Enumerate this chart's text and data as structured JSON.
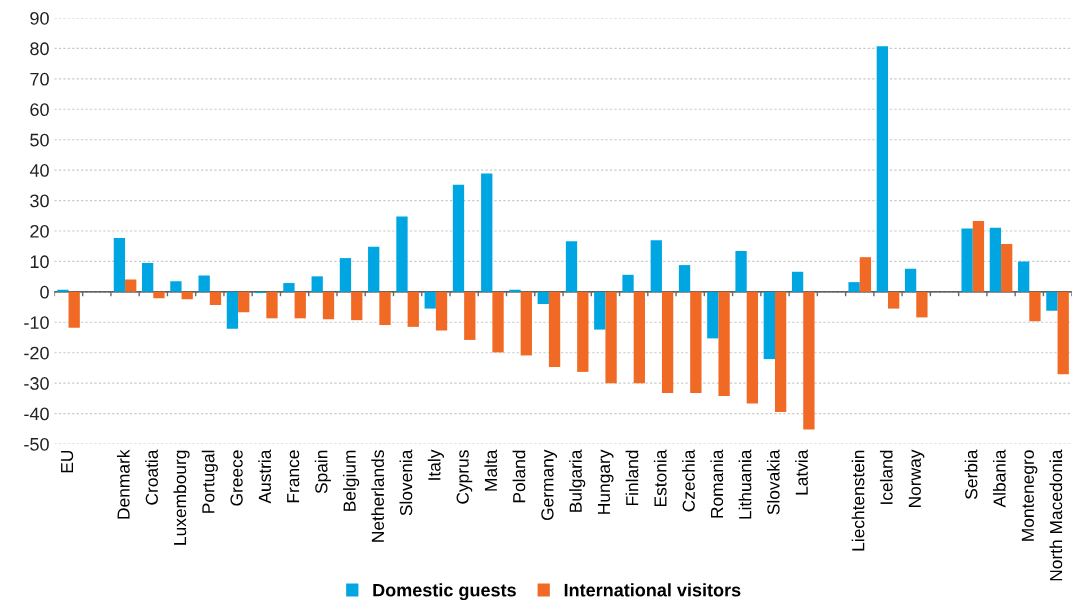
{
  "chart_data": {
    "type": "bar",
    "categories": [
      "EU",
      null,
      "Denmark",
      "Croatia",
      "Luxembourg",
      "Portugal",
      "Greece",
      "Austria",
      "France",
      "Spain",
      "Belgium",
      "Netherlands",
      "Slovenia",
      "Italy",
      "Cyprus",
      "Malta",
      "Poland",
      "Germany",
      "Bulgaria",
      "Hungary",
      "Finland",
      "Estonia",
      "Czechia",
      "Romania",
      "Lithuania",
      "Slovakia",
      "Latvia",
      null,
      "Liechtenstein",
      "Iceland",
      "Norway",
      null,
      "Serbia",
      "Albania",
      "Montenegro",
      "North Macedonia"
    ],
    "series": [
      {
        "name": "Domestic guests",
        "color": "#00a6e2",
        "values": [
          0.7,
          null,
          17.7,
          9.5,
          3.5,
          5.4,
          -12.1,
          -0.4,
          2.9,
          5.1,
          11.1,
          14.8,
          24.8,
          -5.5,
          35.2,
          38.9,
          0.7,
          -4.0,
          16.6,
          -12.4,
          5.6,
          17.0,
          8.8,
          -15.3,
          13.4,
          -22.1,
          6.6,
          null,
          3.2,
          80.7,
          7.6,
          null,
          20.8,
          21.1,
          10.0,
          -6.2
        ]
      },
      {
        "name": "International visitors",
        "color": "#f06a25",
        "values": [
          -11.8,
          null,
          4.1,
          -2.1,
          -2.4,
          -4.3,
          -6.7,
          -8.7,
          -8.7,
          -9.0,
          -9.3,
          -10.9,
          -11.5,
          -12.7,
          -15.8,
          -19.9,
          -20.9,
          -24.7,
          -26.3,
          -30.0,
          -30.0,
          -33.2,
          -33.2,
          -34.2,
          -36.7,
          -39.5,
          -45.2,
          null,
          11.4,
          -5.5,
          -8.4,
          null,
          23.3,
          15.7,
          -9.7,
          -27.1
        ]
      }
    ],
    "ylim": [
      -50,
      90
    ],
    "yticks": [
      -50,
      -40,
      -30,
      -20,
      -10,
      0,
      10,
      20,
      30,
      40,
      50,
      60,
      70,
      80,
      90
    ],
    "grid": "y",
    "legend": "bottom"
  }
}
